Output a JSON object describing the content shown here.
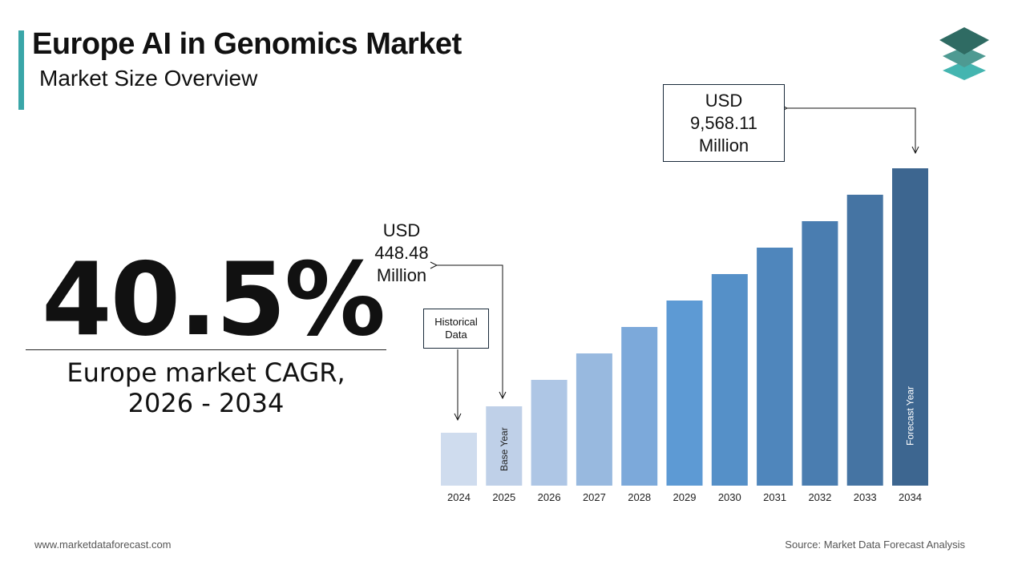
{
  "header": {
    "title": "Europe AI in Genomics Market",
    "subtitle": "Market Size Overview"
  },
  "logo": {
    "icon": "stacked-layers-logo",
    "colors": [
      "#2f6b63",
      "#4e9a92",
      "#44b5b0"
    ]
  },
  "cagr": {
    "value": "40.5%",
    "label_line1": "Europe market CAGR,",
    "label_line2": "2026 - 2034"
  },
  "callouts": {
    "start": {
      "line1": "USD",
      "line2": "448.48",
      "line3": "Million"
    },
    "end": {
      "line1": "USD",
      "line2": "9,568.11",
      "line3": "Million"
    },
    "historical": {
      "line1": "Historical",
      "line2": "Data"
    }
  },
  "chart_data": {
    "type": "bar",
    "categories": [
      "2024",
      "2025",
      "2026",
      "2027",
      "2028",
      "2029",
      "2030",
      "2031",
      "2032",
      "2033",
      "2034"
    ],
    "labeled_values": {
      "2025": 448.48,
      "2034": 9568.11
    },
    "unit": "USD Million",
    "relative_bar_levels": [
      2,
      3,
      4,
      5,
      6,
      7,
      8,
      9,
      10,
      11,
      12
    ],
    "bar_colors": [
      "#cfdcee",
      "#bfd0e8",
      "#aec6e5",
      "#98b9df",
      "#7ca9da",
      "#5d9ad4",
      "#5590c8",
      "#4f86bc",
      "#4a7db0",
      "#4574a3",
      "#3d6690"
    ],
    "bar_annotations": {
      "2025": "Base Year",
      "2034": "Forecast Year"
    },
    "grid": false
  },
  "footer": {
    "website": "www.marketdataforecast.com",
    "source": "Source: Market Data Forecast Analysis"
  }
}
